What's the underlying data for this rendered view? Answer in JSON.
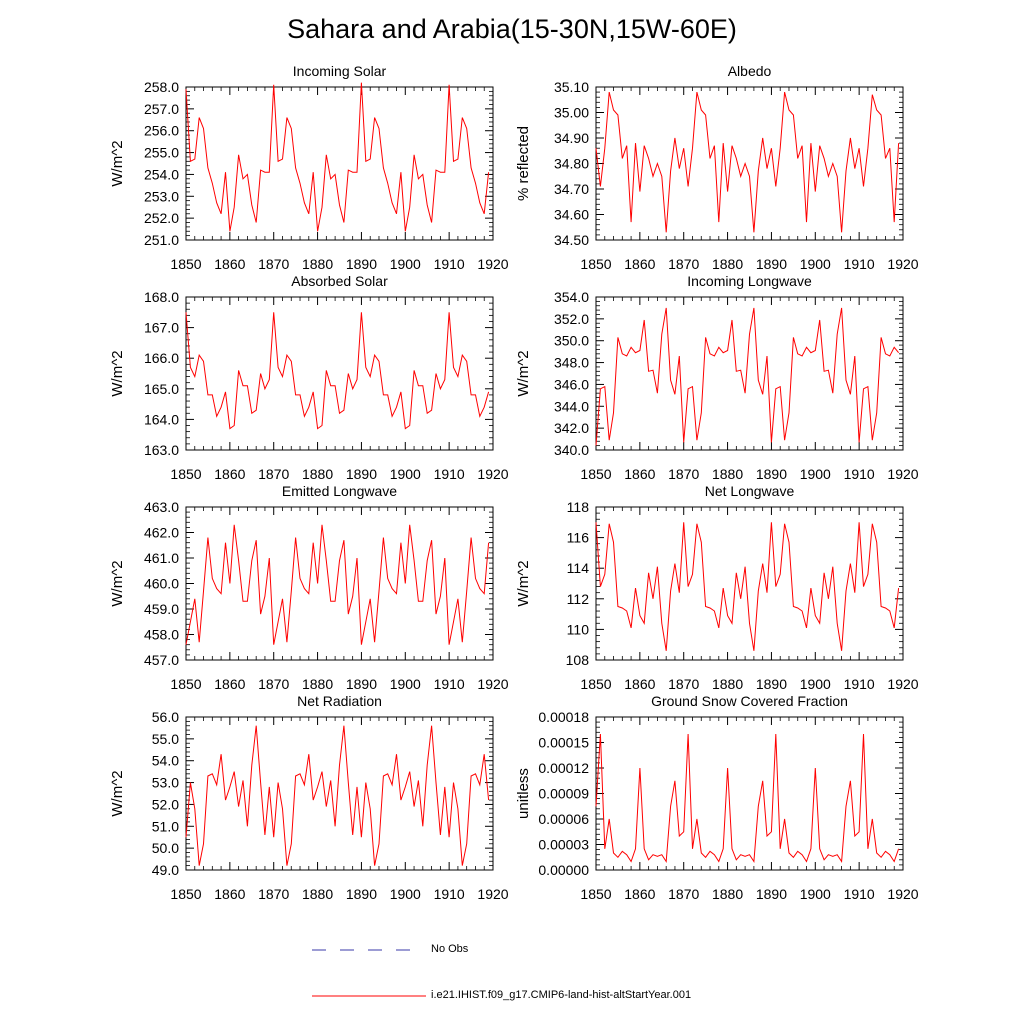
{
  "figure": {
    "title": "Sahara and Arabia(15-30N,15W-60E)",
    "legend": [
      {
        "label": "No Obs",
        "color": "#3a3aa8",
        "style": "dashed"
      },
      {
        "label": "i.e21.IHIST.f09_g17.CMIP6-land-hist-altStartYear.001",
        "color": "#ff0000",
        "style": "solid"
      }
    ]
  },
  "chart_data": [
    {
      "type": "line",
      "title": "Incoming Solar",
      "ylabel": "W/m^2",
      "xlim": [
        1850,
        1920
      ],
      "ylim": [
        251.0,
        258.0
      ],
      "xticks": [
        "1850",
        "1860",
        "1870",
        "1880",
        "1890",
        "1900",
        "1910",
        "1920"
      ],
      "yticks": [
        "251.0",
        "252.0",
        "253.0",
        "254.0",
        "255.0",
        "256.0",
        "257.0",
        "258.0"
      ],
      "series": [
        {
          "color": "#ff0000",
          "x_start": 1850,
          "values": [
            257.9,
            254.6,
            254.7,
            256.6,
            256.1,
            254.3,
            253.6,
            252.7,
            252.2,
            254.1,
            251.4,
            252.5,
            254.9,
            253.8,
            254.0,
            252.6,
            251.8,
            254.2,
            254.1,
            254.1,
            258.1,
            254.6,
            254.7,
            256.6,
            256.1,
            254.3,
            253.6,
            252.7,
            252.2,
            254.1,
            251.4,
            252.5,
            254.9,
            253.8,
            254.0,
            252.6,
            251.8,
            254.2,
            254.1,
            254.1,
            258.2,
            254.6,
            254.7,
            256.6,
            256.1,
            254.3,
            253.6,
            252.7,
            252.2,
            254.1,
            251.4,
            252.5,
            254.9,
            253.8,
            254.0,
            252.6,
            251.8,
            254.2,
            254.1,
            254.1,
            258.1,
            254.6,
            254.7,
            256.6,
            256.1,
            254.3,
            253.6,
            252.7,
            252.2,
            254.1
          ]
        }
      ]
    },
    {
      "type": "line",
      "title": "Albedo",
      "ylabel": "% reflected",
      "xlim": [
        1850,
        1920
      ],
      "ylim": [
        34.5,
        35.1
      ],
      "xticks": [
        "1850",
        "1860",
        "1870",
        "1880",
        "1890",
        "1900",
        "1910",
        "1920"
      ],
      "yticks": [
        "34.50",
        "34.60",
        "34.70",
        "34.80",
        "34.90",
        "35.00",
        "35.10"
      ],
      "series": [
        {
          "color": "#ff0000",
          "x_start": 1850,
          "values": [
            34.86,
            34.71,
            34.86,
            35.08,
            35.01,
            34.99,
            34.82,
            34.87,
            34.57,
            34.88,
            34.69,
            34.87,
            34.82,
            34.75,
            34.8,
            34.75,
            34.53,
            34.77,
            34.9,
            34.78,
            34.86,
            34.71,
            34.86,
            35.08,
            35.01,
            34.99,
            34.82,
            34.87,
            34.57,
            34.88,
            34.69,
            34.87,
            34.82,
            34.75,
            34.8,
            34.75,
            34.53,
            34.77,
            34.9,
            34.78,
            34.86,
            34.71,
            34.86,
            35.08,
            35.01,
            34.99,
            34.82,
            34.87,
            34.57,
            34.88,
            34.69,
            34.87,
            34.82,
            34.75,
            34.8,
            34.75,
            34.53,
            34.77,
            34.9,
            34.78,
            34.86,
            34.71,
            34.86,
            35.07,
            35.01,
            34.99,
            34.82,
            34.86,
            34.57,
            34.88
          ]
        }
      ]
    },
    {
      "type": "line",
      "title": "Absorbed Solar",
      "ylabel": "W/m^2",
      "xlim": [
        1850,
        1920
      ],
      "ylim": [
        163.0,
        168.0
      ],
      "xticks": [
        "1850",
        "1860",
        "1870",
        "1880",
        "1890",
        "1900",
        "1910",
        "1920"
      ],
      "yticks": [
        "163.0",
        "164.0",
        "165.0",
        "166.0",
        "167.0",
        "168.0"
      ],
      "series": [
        {
          "color": "#ff0000",
          "x_start": 1850,
          "values": [
            167.5,
            165.7,
            165.4,
            166.1,
            165.9,
            164.8,
            164.8,
            164.1,
            164.4,
            164.9,
            163.7,
            163.8,
            165.6,
            165.1,
            165.1,
            164.2,
            164.3,
            165.5,
            165.0,
            165.3,
            167.5,
            165.7,
            165.4,
            166.1,
            165.9,
            164.8,
            164.8,
            164.1,
            164.4,
            164.9,
            163.7,
            163.8,
            165.6,
            165.1,
            165.1,
            164.2,
            164.3,
            165.5,
            165.0,
            165.3,
            167.5,
            165.7,
            165.4,
            166.1,
            165.9,
            164.8,
            164.8,
            164.1,
            164.4,
            164.9,
            163.7,
            163.8,
            165.6,
            165.1,
            165.1,
            164.2,
            164.3,
            165.5,
            165.0,
            165.3,
            167.5,
            165.7,
            165.4,
            166.1,
            165.9,
            164.8,
            164.8,
            164.1,
            164.4,
            164.9
          ]
        }
      ]
    },
    {
      "type": "line",
      "title": "Incoming Longwave",
      "ylabel": "W/m^2",
      "xlim": [
        1850,
        1920
      ],
      "ylim": [
        340.0,
        354.0
      ],
      "xticks": [
        "1850",
        "1860",
        "1870",
        "1880",
        "1890",
        "1900",
        "1910",
        "1920"
      ],
      "yticks": [
        "340.0",
        "342.0",
        "344.0",
        "346.0",
        "348.0",
        "350.0",
        "352.0",
        "354.0"
      ],
      "series": [
        {
          "color": "#ff0000",
          "x_start": 1850,
          "values": [
            340.4,
            345.6,
            345.8,
            340.9,
            343.4,
            350.3,
            348.8,
            348.6,
            349.4,
            348.9,
            349.1,
            351.9,
            347.2,
            347.3,
            345.2,
            350.6,
            353.0,
            346.4,
            345.1,
            348.6,
            340.7,
            345.6,
            345.8,
            340.9,
            343.4,
            350.3,
            348.8,
            348.6,
            349.4,
            348.9,
            349.1,
            351.9,
            347.2,
            347.3,
            345.2,
            350.6,
            353.0,
            346.4,
            345.1,
            348.6,
            340.7,
            345.6,
            345.8,
            340.9,
            343.4,
            350.3,
            348.8,
            348.6,
            349.4,
            348.9,
            349.1,
            351.9,
            347.2,
            347.3,
            345.2,
            350.6,
            353.0,
            346.4,
            345.1,
            348.6,
            340.7,
            345.6,
            345.8,
            340.9,
            343.4,
            350.3,
            348.8,
            348.6,
            349.4,
            348.9
          ]
        }
      ]
    },
    {
      "type": "line",
      "title": "Emitted Longwave",
      "ylabel": "W/m^2",
      "xlim": [
        1850,
        1920
      ],
      "ylim": [
        457.0,
        463.0
      ],
      "xticks": [
        "1850",
        "1860",
        "1870",
        "1880",
        "1890",
        "1900",
        "1910",
        "1920"
      ],
      "yticks": [
        "457.0",
        "458.0",
        "459.0",
        "460.0",
        "461.0",
        "462.0",
        "463.0"
      ],
      "series": [
        {
          "color": "#ff0000",
          "x_start": 1850,
          "values": [
            457.6,
            458.5,
            459.4,
            457.7,
            459.7,
            461.8,
            460.2,
            459.8,
            459.6,
            461.6,
            460.0,
            462.3,
            460.9,
            459.3,
            459.3,
            460.9,
            461.7,
            458.8,
            459.5,
            461.0,
            457.6,
            458.5,
            459.4,
            457.7,
            459.7,
            461.8,
            460.2,
            459.8,
            459.6,
            461.6,
            460.0,
            462.3,
            460.9,
            459.3,
            459.3,
            460.9,
            461.7,
            458.8,
            459.5,
            461.0,
            457.6,
            458.5,
            459.4,
            457.7,
            459.7,
            461.8,
            460.2,
            459.8,
            459.6,
            461.6,
            460.0,
            462.3,
            460.9,
            459.3,
            459.3,
            460.9,
            461.7,
            458.8,
            459.5,
            461.0,
            457.6,
            458.5,
            459.4,
            457.7,
            459.7,
            461.8,
            460.2,
            459.8,
            459.6,
            461.6
          ]
        }
      ]
    },
    {
      "type": "line",
      "title": "Net Longwave",
      "ylabel": "W/m^2",
      "xlim": [
        1850,
        1920
      ],
      "ylim": [
        108,
        118
      ],
      "xticks": [
        "1850",
        "1860",
        "1870",
        "1880",
        "1890",
        "1900",
        "1910",
        "1920"
      ],
      "yticks": [
        "108",
        "110",
        "112",
        "114",
        "116",
        "118"
      ],
      "series": [
        {
          "color": "#ff0000",
          "x_start": 1850,
          "values": [
            117.0,
            112.8,
            113.6,
            116.9,
            115.7,
            111.5,
            111.4,
            111.2,
            110.1,
            112.7,
            110.9,
            110.4,
            113.7,
            112.0,
            114.1,
            110.4,
            108.6,
            112.5,
            114.3,
            112.4,
            117.0,
            112.8,
            113.6,
            116.9,
            115.7,
            111.5,
            111.4,
            111.2,
            110.1,
            112.7,
            110.9,
            110.4,
            113.7,
            112.0,
            114.1,
            110.4,
            108.6,
            112.5,
            114.3,
            112.4,
            117.0,
            112.8,
            113.6,
            116.9,
            115.7,
            111.5,
            111.4,
            111.2,
            110.1,
            112.7,
            110.9,
            110.4,
            113.7,
            112.0,
            114.1,
            110.4,
            108.6,
            112.5,
            114.3,
            112.4,
            117.0,
            112.8,
            113.6,
            116.9,
            115.7,
            111.5,
            111.4,
            111.2,
            110.1,
            112.7
          ]
        }
      ]
    },
    {
      "type": "line",
      "title": "Net Radiation",
      "ylabel": "W/m^2",
      "xlim": [
        1850,
        1920
      ],
      "ylim": [
        49.0,
        56.0
      ],
      "xticks": [
        "1850",
        "1860",
        "1870",
        "1880",
        "1890",
        "1900",
        "1910",
        "1920"
      ],
      "yticks": [
        "49.0",
        "50.0",
        "51.0",
        "52.0",
        "53.0",
        "54.0",
        "55.0",
        "56.0"
      ],
      "series": [
        {
          "color": "#ff0000",
          "x_start": 1850,
          "values": [
            50.5,
            53.0,
            51.8,
            49.2,
            50.2,
            53.3,
            53.4,
            52.9,
            54.3,
            52.2,
            52.8,
            53.5,
            51.9,
            53.1,
            51.0,
            53.8,
            55.6,
            53.0,
            50.6,
            52.8,
            50.5,
            53.0,
            51.8,
            49.2,
            50.2,
            53.3,
            53.4,
            52.9,
            54.3,
            52.2,
            52.8,
            53.5,
            51.9,
            53.1,
            51.0,
            53.8,
            55.6,
            53.0,
            50.6,
            52.8,
            50.5,
            53.0,
            51.8,
            49.2,
            50.2,
            53.3,
            53.4,
            52.9,
            54.3,
            52.2,
            52.8,
            53.5,
            51.9,
            53.1,
            51.0,
            53.8,
            55.6,
            53.0,
            50.6,
            52.8,
            50.5,
            53.0,
            51.8,
            49.2,
            50.2,
            53.3,
            53.4,
            52.9,
            54.3,
            52.2
          ]
        }
      ]
    },
    {
      "type": "line",
      "title": "Ground Snow Covered Fraction",
      "ylabel": "unitless",
      "xlim": [
        1850,
        1920
      ],
      "ylim": [
        0.0,
        0.00018
      ],
      "xticks": [
        "1850",
        "1860",
        "1870",
        "1880",
        "1890",
        "1900",
        "1910",
        "1920"
      ],
      "yticks": [
        "0.00000",
        "0.00003",
        "0.00006",
        "0.00009",
        "0.00012",
        "0.00015",
        "0.00018"
      ],
      "series": [
        {
          "color": "#ff0000",
          "x_start": 1850,
          "values": [
            7.5e-05,
            0.00016,
            2.5e-05,
            6e-05,
            2e-05,
            1.5e-05,
            2.2e-05,
            1.8e-05,
            1e-05,
            2.5e-05,
            0.00012,
            2.5e-05,
            1.2e-05,
            1.8e-05,
            1.6e-05,
            1.8e-05,
            1e-05,
            7.5e-05,
            0.000105,
            4e-05,
            4.5e-05,
            0.00016,
            2.5e-05,
            6e-05,
            2e-05,
            1.5e-05,
            2.2e-05,
            1.8e-05,
            1e-05,
            2.5e-05,
            0.00012,
            2.5e-05,
            1.2e-05,
            1.8e-05,
            1.6e-05,
            1.8e-05,
            1e-05,
            7.5e-05,
            0.000105,
            4e-05,
            4.5e-05,
            0.00016,
            2.5e-05,
            6e-05,
            2e-05,
            1.5e-05,
            2.2e-05,
            1.8e-05,
            1e-05,
            2.5e-05,
            0.00012,
            2.5e-05,
            1.2e-05,
            1.8e-05,
            1.6e-05,
            1.8e-05,
            1e-05,
            7.5e-05,
            0.000105,
            4e-05,
            4.5e-05,
            0.00016,
            2.5e-05,
            6e-05,
            2e-05,
            1.5e-05,
            2.2e-05,
            1.8e-05,
            1e-05,
            2.5e-05
          ]
        }
      ]
    }
  ]
}
